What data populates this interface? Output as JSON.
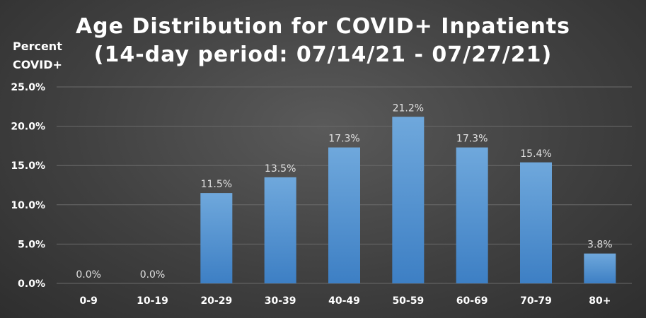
{
  "chart_data": {
    "type": "bar",
    "title": "Age Distribution for COVID+ Inpatients",
    "subtitle": "(14-day period:  07/14/21 - 07/27/21)",
    "ylabel_line1": "Percent",
    "ylabel_line2": "COVID+",
    "xlabel": "",
    "categories": [
      "0-9",
      "10-19",
      "20-29",
      "30-39",
      "40-49",
      "50-59",
      "60-69",
      "70-79",
      "80+"
    ],
    "values": [
      0.0,
      0.0,
      11.5,
      13.5,
      17.3,
      21.2,
      17.3,
      15.4,
      3.8
    ],
    "data_labels": [
      "0.0%",
      "0.0%",
      "11.5%",
      "13.5%",
      "17.3%",
      "21.2%",
      "17.3%",
      "15.4%",
      "3.8%"
    ],
    "ylim": [
      0,
      25
    ],
    "yticks": [
      0,
      5,
      10,
      15,
      20,
      25
    ],
    "ytick_labels": [
      "0.0%",
      "5.0%",
      "10.0%",
      "15.0%",
      "20.0%",
      "25.0%"
    ],
    "grid": true,
    "legend": "none",
    "colors": {
      "bar_top": "#6fa8dc",
      "bar_bottom": "#3d7fc4",
      "text": "#ffffff",
      "data_label": "#e0e0e0",
      "grid": "#6a6a6a"
    }
  }
}
